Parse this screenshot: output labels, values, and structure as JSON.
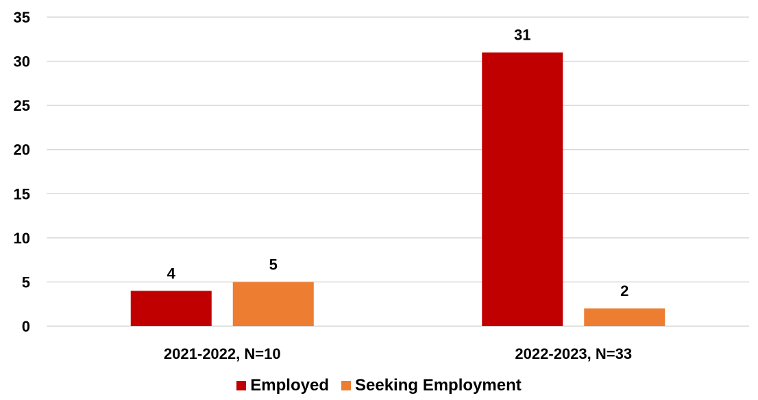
{
  "chart_data": {
    "type": "bar",
    "categories": [
      "2021-2022, N=10",
      "2022-2023, N=33"
    ],
    "series": [
      {
        "name": "Employed",
        "values": [
          4,
          31
        ],
        "color": "#c00000"
      },
      {
        "name": "Seeking Employment",
        "values": [
          5,
          2
        ],
        "color": "#ed7d31"
      }
    ],
    "ylim": [
      0,
      35
    ],
    "yticks": [
      0,
      5,
      10,
      15,
      20,
      25,
      30,
      35
    ],
    "grid": true,
    "legend_position": "bottom",
    "title": "",
    "xlabel": "",
    "ylabel": ""
  },
  "legend": {
    "items": [
      {
        "label": "Employed",
        "color": "#c00000"
      },
      {
        "label": "Seeking Employment",
        "color": "#ed7d31"
      }
    ]
  }
}
